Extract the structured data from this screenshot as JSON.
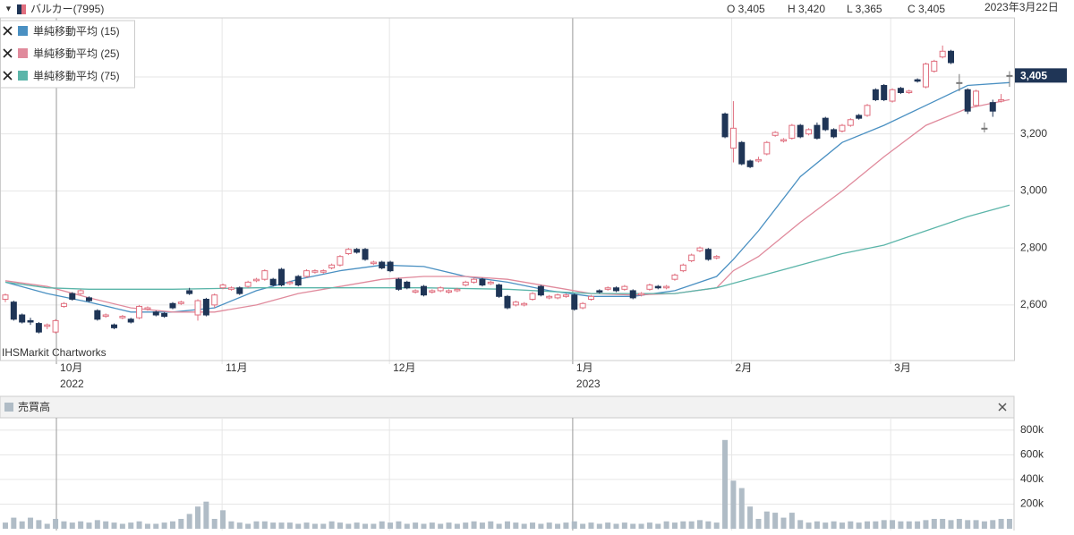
{
  "header": {
    "symbol": "バルカー(7995)",
    "open": "O 3,405",
    "high": "H 3,420",
    "low": "L 3,365",
    "close": "C 3,405",
    "date": "2023年3月22日"
  },
  "watermark": "IHSMarkit Chartworks",
  "volume_title": "売買高",
  "chart_data": [
    {
      "type": "candlestick",
      "xlim": [
        -0.64,
        120.54
      ],
      "xticks": [
        {
          "value": 6.1,
          "label": "10月"
        },
        {
          "value": 25.9,
          "label": "11月"
        },
        {
          "value": 45.9,
          "label": "12月"
        },
        {
          "value": 67.8,
          "label": "1月"
        },
        {
          "value": 86.8,
          "label": "2月"
        },
        {
          "value": 105.8,
          "label": "3月"
        }
      ],
      "year_ticks": [
        {
          "value": 6.1,
          "label": "2022"
        },
        {
          "value": 67.8,
          "label": "2023"
        }
      ],
      "ylim": [
        2405,
        3607
      ],
      "yticks": [
        {
          "value": 2600,
          "label": "2,600"
        },
        {
          "value": 2800,
          "label": "2,800"
        },
        {
          "value": 3000,
          "label": "3,000"
        },
        {
          "value": 3200,
          "label": "3,200"
        },
        {
          "value": 3400,
          "label": "3,400"
        }
      ],
      "up_color": "#e06e7e",
      "down_color": "#1f3556",
      "last_price_label": "3,405",
      "ohlc": [
        [
          2620,
          2640,
          2610,
          2635
        ],
        [
          2610,
          2615,
          2545,
          2550
        ],
        [
          2565,
          2570,
          2535,
          2540
        ],
        [
          2545,
          2555,
          2530,
          2540
        ],
        [
          2535,
          2540,
          2500,
          2505
        ],
        [
          2525,
          2535,
          2515,
          2530
        ],
        [
          2505,
          2550,
          2500,
          2545
        ],
        [
          2595,
          2610,
          2590,
          2605
        ],
        [
          2640,
          2645,
          2615,
          2620
        ],
        [
          2640,
          2655,
          2635,
          2650
        ],
        [
          2625,
          2630,
          2610,
          2615
        ],
        [
          2580,
          2585,
          2545,
          2550
        ],
        [
          2560,
          2570,
          2555,
          2565
        ],
        [
          2530,
          2535,
          2515,
          2520
        ],
        [
          2555,
          2565,
          2550,
          2560
        ],
        [
          2550,
          2555,
          2535,
          2540
        ],
        [
          2555,
          2600,
          2550,
          2595
        ],
        [
          2585,
          2595,
          2580,
          2590
        ],
        [
          2575,
          2580,
          2560,
          2565
        ],
        [
          2570,
          2575,
          2555,
          2560
        ],
        [
          2605,
          2610,
          2585,
          2590
        ],
        [
          2605,
          2615,
          2600,
          2610
        ],
        [
          2650,
          2660,
          2635,
          2640
        ],
        [
          2565,
          2620,
          2545,
          2615
        ],
        [
          2620,
          2625,
          2560,
          2565
        ],
        [
          2600,
          2640,
          2590,
          2635
        ],
        [
          2660,
          2675,
          2655,
          2670
        ],
        [
          2655,
          2665,
          2650,
          2660
        ],
        [
          2660,
          2665,
          2635,
          2640
        ],
        [
          2665,
          2685,
          2660,
          2680
        ],
        [
          2685,
          2695,
          2680,
          2690
        ],
        [
          2690,
          2725,
          2685,
          2720
        ],
        [
          2690,
          2695,
          2665,
          2670
        ],
        [
          2725,
          2730,
          2665,
          2670
        ],
        [
          2675,
          2685,
          2670,
          2680
        ],
        [
          2700,
          2705,
          2665,
          2670
        ],
        [
          2700,
          2725,
          2695,
          2720
        ],
        [
          2715,
          2725,
          2710,
          2720
        ],
        [
          2715,
          2725,
          2710,
          2720
        ],
        [
          2730,
          2745,
          2725,
          2740
        ],
        [
          2740,
          2775,
          2735,
          2770
        ],
        [
          2780,
          2800,
          2775,
          2795
        ],
        [
          2795,
          2800,
          2780,
          2785
        ],
        [
          2795,
          2800,
          2755,
          2760
        ],
        [
          2745,
          2755,
          2740,
          2750
        ],
        [
          2750,
          2755,
          2725,
          2730
        ],
        [
          2750,
          2755,
          2715,
          2720
        ],
        [
          2690,
          2695,
          2650,
          2655
        ],
        [
          2680,
          2685,
          2655,
          2660
        ],
        [
          2645,
          2655,
          2640,
          2650
        ],
        [
          2665,
          2670,
          2630,
          2635
        ],
        [
          2645,
          2655,
          2640,
          2650
        ],
        [
          2650,
          2665,
          2645,
          2660
        ],
        [
          2645,
          2655,
          2640,
          2650
        ],
        [
          2650,
          2660,
          2645,
          2655
        ],
        [
          2670,
          2685,
          2665,
          2680
        ],
        [
          2680,
          2695,
          2675,
          2690
        ],
        [
          2690,
          2695,
          2665,
          2670
        ],
        [
          2675,
          2685,
          2670,
          2680
        ],
        [
          2670,
          2675,
          2625,
          2630
        ],
        [
          2630,
          2635,
          2585,
          2590
        ],
        [
          2600,
          2615,
          2595,
          2610
        ],
        [
          2600,
          2610,
          2595,
          2605
        ],
        [
          2620,
          2645,
          2615,
          2640
        ],
        [
          2665,
          2670,
          2630,
          2635
        ],
        [
          2625,
          2635,
          2620,
          2630
        ],
        [
          2625,
          2640,
          2620,
          2635
        ],
        [
          2630,
          2640,
          2625,
          2635
        ],
        [
          2635,
          2640,
          2580,
          2585
        ],
        [
          2590,
          2610,
          2585,
          2605
        ],
        [
          2620,
          2635,
          2615,
          2630
        ],
        [
          2650,
          2655,
          2640,
          2645
        ],
        [
          2655,
          2665,
          2650,
          2660
        ],
        [
          2660,
          2665,
          2645,
          2650
        ],
        [
          2655,
          2670,
          2650,
          2665
        ],
        [
          2650,
          2655,
          2620,
          2625
        ],
        [
          2635,
          2645,
          2630,
          2640
        ],
        [
          2655,
          2675,
          2650,
          2670
        ],
        [
          2665,
          2670,
          2655,
          2660
        ],
        [
          2660,
          2670,
          2655,
          2665
        ],
        [
          2690,
          2710,
          2685,
          2705
        ],
        [
          2720,
          2745,
          2715,
          2740
        ],
        [
          2755,
          2780,
          2750,
          2775
        ],
        [
          2790,
          2805,
          2785,
          2800
        ],
        [
          2795,
          2800,
          2755,
          2760
        ],
        [
          2765,
          2775,
          2760,
          2770
        ],
        [
          3270,
          3275,
          3185,
          3190
        ],
        [
          3150,
          3315,
          3100,
          3220
        ],
        [
          3170,
          3175,
          3090,
          3095
        ],
        [
          3105,
          3110,
          3080,
          3085
        ],
        [
          3105,
          3120,
          3100,
          3110
        ],
        [
          3130,
          3175,
          3125,
          3170
        ],
        [
          3195,
          3210,
          3190,
          3205
        ],
        [
          3175,
          3185,
          3170,
          3180
        ],
        [
          3185,
          3235,
          3180,
          3230
        ],
        [
          3230,
          3235,
          3185,
          3190
        ],
        [
          3200,
          3220,
          3195,
          3215
        ],
        [
          3230,
          3240,
          3180,
          3185
        ],
        [
          3255,
          3260,
          3210,
          3215
        ],
        [
          3215,
          3220,
          3185,
          3190
        ],
        [
          3210,
          3235,
          3205,
          3230
        ],
        [
          3230,
          3255,
          3225,
          3250
        ],
        [
          3265,
          3270,
          3250,
          3255
        ],
        [
          3265,
          3305,
          3260,
          3300
        ],
        [
          3355,
          3360,
          3315,
          3320
        ],
        [
          3370,
          3375,
          3315,
          3320
        ],
        [
          3315,
          3360,
          3310,
          3355
        ],
        [
          3360,
          3365,
          3340,
          3345
        ],
        [
          3345,
          3355,
          3340,
          3350
        ],
        [
          3390,
          3395,
          3380,
          3385
        ],
        [
          3365,
          3450,
          3360,
          3445
        ],
        [
          3420,
          3460,
          3415,
          3455
        ],
        [
          3470,
          3510,
          3465,
          3490
        ],
        [
          3490,
          3495,
          3445,
          3450
        ],
        [
          3380,
          3410,
          3350,
          3380
        ],
        [
          3355,
          3360,
          3270,
          3280
        ],
        [
          3300,
          3355,
          3295,
          3350
        ],
        [
          3220,
          3240,
          3205,
          3220
        ],
        [
          3310,
          3320,
          3260,
          3280
        ],
        [
          3315,
          3340,
          3310,
          3320
        ],
        [
          3405,
          3420,
          3365,
          3405
        ]
      ],
      "series": [
        {
          "name": "単純移動平均 (15)",
          "color": "#4a90c2",
          "x": [
            0,
            5,
            10,
            15,
            20,
            25,
            30,
            35,
            40,
            45,
            50,
            55,
            60,
            65,
            70,
            75,
            80,
            85,
            87,
            90,
            95,
            100,
            105,
            110,
            115,
            120
          ],
          "values": [
            2680,
            2640,
            2610,
            2575,
            2575,
            2590,
            2650,
            2690,
            2720,
            2740,
            2735,
            2700,
            2680,
            2650,
            2630,
            2630,
            2650,
            2700,
            2760,
            2860,
            3050,
            3170,
            3230,
            3300,
            3370,
            3380
          ]
        },
        {
          "name": "単純移動平均 (25)",
          "color": "#e08a9c",
          "x": [
            0,
            5,
            10,
            15,
            20,
            25,
            30,
            35,
            40,
            45,
            50,
            55,
            60,
            65,
            70,
            75,
            80,
            85,
            87,
            90,
            95,
            100,
            105,
            110,
            115,
            120
          ],
          "values": [
            2685,
            2665,
            2625,
            2590,
            2575,
            2575,
            2600,
            2640,
            2665,
            2690,
            2700,
            2700,
            2690,
            2665,
            2640,
            2635,
            2640,
            2660,
            2720,
            2770,
            2890,
            3000,
            3120,
            3230,
            3290,
            3320
          ]
        },
        {
          "name": "単純移動平均 (75)",
          "color": "#5bb5a9",
          "x": [
            0,
            5,
            10,
            20,
            30,
            40,
            50,
            60,
            70,
            80,
            85,
            90,
            95,
            100,
            105,
            110,
            115,
            120
          ],
          "values": [
            2680,
            2660,
            2655,
            2655,
            2660,
            2660,
            2660,
            2655,
            2640,
            2640,
            2660,
            2700,
            2740,
            2780,
            2810,
            2860,
            2910,
            2950
          ]
        }
      ]
    },
    {
      "type": "bar",
      "xlim": [
        -0.64,
        120.54
      ],
      "ylim": [
        0,
        900000
      ],
      "color": "#b0bcc6",
      "yticks": [
        {
          "value": 200000,
          "label": "200k"
        },
        {
          "value": 400000,
          "label": "400k"
        },
        {
          "value": 600000,
          "label": "600k"
        },
        {
          "value": 800000,
          "label": "800k"
        }
      ],
      "values": [
        50000,
        90000,
        60000,
        90000,
        70000,
        40000,
        80000,
        60000,
        50000,
        60000,
        50000,
        70000,
        60000,
        50000,
        40000,
        50000,
        60000,
        40000,
        40000,
        50000,
        60000,
        80000,
        120000,
        180000,
        220000,
        80000,
        150000,
        60000,
        50000,
        40000,
        60000,
        60000,
        50000,
        50000,
        50000,
        40000,
        50000,
        40000,
        40000,
        60000,
        50000,
        40000,
        50000,
        40000,
        40000,
        60000,
        50000,
        60000,
        40000,
        50000,
        40000,
        50000,
        40000,
        50000,
        40000,
        50000,
        60000,
        50000,
        60000,
        40000,
        60000,
        50000,
        40000,
        50000,
        40000,
        50000,
        40000,
        50000,
        60000,
        40000,
        50000,
        40000,
        50000,
        40000,
        50000,
        40000,
        40000,
        50000,
        40000,
        60000,
        50000,
        60000,
        60000,
        70000,
        60000,
        50000,
        720000,
        390000,
        330000,
        180000,
        80000,
        140000,
        130000,
        90000,
        130000,
        70000,
        50000,
        60000,
        50000,
        60000,
        50000,
        60000,
        50000,
        60000,
        60000,
        70000,
        70000,
        60000,
        60000,
        60000,
        70000,
        80000,
        80000,
        70000,
        80000,
        70000,
        70000,
        60000,
        70000,
        80000,
        80000
      ]
    }
  ]
}
